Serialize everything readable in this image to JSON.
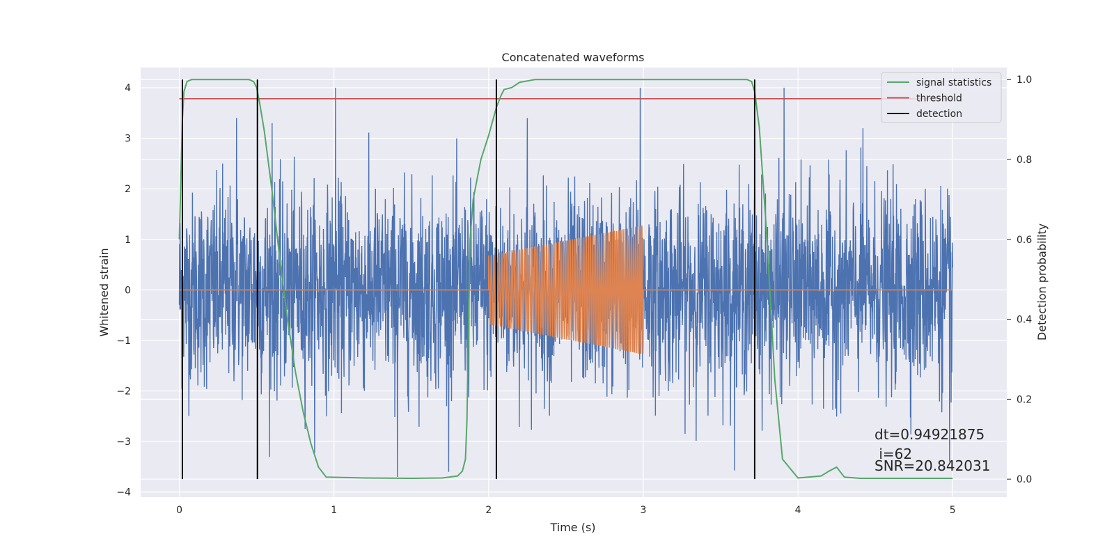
{
  "chart_data": {
    "type": "line",
    "title": "Concatenated waveforms",
    "xlabel": "Time (s)",
    "ylabel": "Whitened strain",
    "ylabel_right": "Detection probability",
    "xlim": [
      -0.25,
      5.35
    ],
    "ylim": [
      -4.1,
      4.4
    ],
    "ylim_right": [
      -0.045,
      1.03
    ],
    "x_ticks": [
      0,
      1,
      2,
      3,
      4,
      5
    ],
    "x_tick_labels": [
      "0",
      "1",
      "2",
      "3",
      "4",
      "5"
    ],
    "y_ticks": [
      -4,
      -3,
      -2,
      -1,
      0,
      1,
      2,
      3,
      4
    ],
    "y_tick_labels": [
      "−4",
      "−3",
      "−2",
      "−1",
      "0",
      "1",
      "2",
      "3",
      "4"
    ],
    "y_right_ticks": [
      0.0,
      0.2,
      0.4,
      0.6,
      0.8,
      1.0
    ],
    "y_right_tick_labels": [
      "0.0",
      "0.2",
      "0.4",
      "0.6",
      "0.8",
      "1.0"
    ],
    "grid": true,
    "legend_position": "top-right",
    "colors": {
      "strain": "#4c72b0",
      "template": "#dd8452",
      "signal_statistics": "#55a868",
      "threshold": "#c44e52",
      "detection": "#000000",
      "background": "#eaeaf2"
    },
    "series": [
      {
        "id": "strain",
        "axis": "left",
        "kind": "noise",
        "x_range": [
          0,
          5
        ],
        "spread": 0.95,
        "peaks": [
          [
            1.01,
            4.0
          ],
          [
            2.98,
            4.0
          ],
          [
            3.91,
            4.0
          ],
          [
            1.41,
            -3.7
          ],
          [
            0.28,
            2.5
          ],
          [
            0.37,
            3.4
          ],
          [
            0.6,
            3.3
          ],
          [
            2.25,
            3.4
          ],
          [
            4.42,
            3.2
          ],
          [
            4.98,
            -3.4
          ]
        ]
      },
      {
        "id": "template",
        "axis": "left",
        "kind": "chirp",
        "x": [
          0,
          2.0,
          2.0,
          3.0,
          3.0,
          5.0
        ],
        "amplitude_start": 0.68,
        "amplitude_end": 1.28,
        "cycles": 58
      },
      {
        "id": "signal_statistics",
        "name": "signal statistics",
        "axis": "right",
        "x": [
          0,
          0.01,
          0.02,
          0.03,
          0.05,
          0.08,
          0.1,
          0.3,
          0.45,
          0.48,
          0.5,
          0.52,
          0.55,
          0.6,
          0.65,
          0.7,
          0.75,
          0.8,
          0.85,
          0.9,
          0.95,
          1.2,
          1.5,
          1.7,
          1.8,
          1.83,
          1.85,
          1.86,
          1.87,
          1.88,
          1.9,
          1.93,
          1.95,
          2.0,
          2.05,
          2.08,
          2.1,
          2.15,
          2.2,
          2.3,
          3.5,
          3.67,
          3.7,
          3.72,
          3.75,
          3.8,
          3.85,
          3.9,
          4.0,
          4.15,
          4.2,
          4.25,
          4.3,
          4.4,
          5.0
        ],
        "values": [
          0.6,
          0.75,
          0.9,
          0.97,
          0.995,
          1.0,
          1.0,
          1.0,
          1.0,
          0.995,
          0.98,
          0.94,
          0.87,
          0.72,
          0.55,
          0.4,
          0.27,
          0.17,
          0.09,
          0.03,
          0.005,
          0.003,
          0.002,
          0.003,
          0.008,
          0.02,
          0.05,
          0.15,
          0.4,
          0.6,
          0.7,
          0.76,
          0.8,
          0.86,
          0.93,
          0.96,
          0.975,
          0.98,
          0.993,
          1.0,
          1.0,
          1.0,
          0.995,
          0.97,
          0.88,
          0.6,
          0.25,
          0.05,
          0.003,
          0.008,
          0.02,
          0.03,
          0.005,
          0.002,
          0.002
        ]
      },
      {
        "id": "threshold",
        "name": "threshold",
        "axis": "right",
        "x": [
          0,
          5
        ],
        "values": [
          0.952,
          0.952
        ]
      },
      {
        "id": "detection",
        "name": "detection",
        "axis": "right",
        "kind": "vlines",
        "x": [
          0.02,
          0.505,
          2.05,
          3.72
        ],
        "ymin": 0.0,
        "ymax": 1.0
      }
    ],
    "annotations": [
      "dt=0.94921875",
      " i=62",
      "SNR=20.842031"
    ]
  }
}
